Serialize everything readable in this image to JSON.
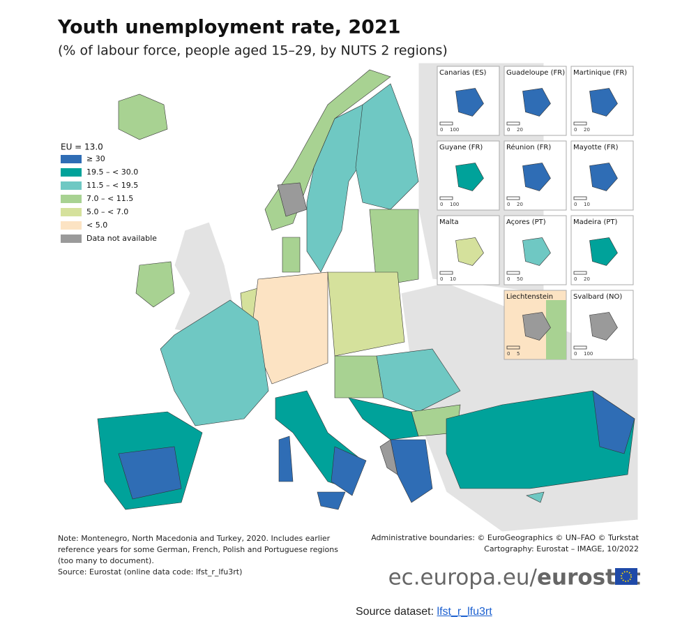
{
  "title": "Youth unemployment rate, 2021",
  "subtitle": "(% of labour force, people aged 15–29, by NUTS 2 regions)",
  "legend": {
    "title": "EU = 13.0",
    "items": [
      {
        "label": "≥ 30",
        "color": "#2f6db5"
      },
      {
        "label": "19.5 – < 30.0",
        "color": "#00a29a"
      },
      {
        "label": "11.5 – < 19.5",
        "color": "#6fc8c3"
      },
      {
        "label": "7.0 – < 11.5",
        "color": "#a8d292"
      },
      {
        "label": "5.0 – < 7.0",
        "color": "#d5e19c"
      },
      {
        "label": "< 5.0",
        "color": "#fce3c3"
      },
      {
        "label": "Data not available",
        "color": "#9a9a9a"
      }
    ]
  },
  "insets": [
    {
      "label": "Canarias (ES)",
      "scale": [
        "0",
        "100"
      ]
    },
    {
      "label": "Guadeloupe (FR)",
      "scale": [
        "0",
        "20"
      ]
    },
    {
      "label": "Martinique (FR)",
      "scale": [
        "0",
        "20"
      ]
    },
    {
      "label": "Guyane (FR)",
      "scale": [
        "0",
        "100"
      ]
    },
    {
      "label": "Réunion (FR)",
      "scale": [
        "0",
        "20"
      ]
    },
    {
      "label": "Mayotte (FR)",
      "scale": [
        "0",
        "10"
      ]
    },
    {
      "label": "Malta",
      "scale": [
        "0",
        "10"
      ]
    },
    {
      "label": "Açores (PT)",
      "scale": [
        "0",
        "50"
      ]
    },
    {
      "label": "Madeira (PT)",
      "scale": [
        "0",
        "20"
      ]
    },
    {
      "label": "Liechtenstein",
      "scale": [
        "0",
        "5"
      ]
    },
    {
      "label": "Svalbard (NO)",
      "scale": [
        "0",
        "100"
      ]
    }
  ],
  "note": [
    "Note: Montenegro, North Macedonia and Turkey, 2020. Includes earlier",
    "reference years for some German, French, Polish and Portuguese regions",
    "(too many to document).",
    "Source: Eurostat (online data code: lfst_r_lfu3rt)"
  ],
  "credits": [
    "Administrative boundaries: © EuroGeographics © UN–FAO © Turkstat",
    "Cartography: Eurostat – IMAGE, 10/2022"
  ],
  "logo": {
    "domain": "ec.europa.eu/",
    "brand": "eurostat"
  },
  "source": {
    "label": "Source dataset:",
    "link": "lfst_r_lfu3rt"
  }
}
